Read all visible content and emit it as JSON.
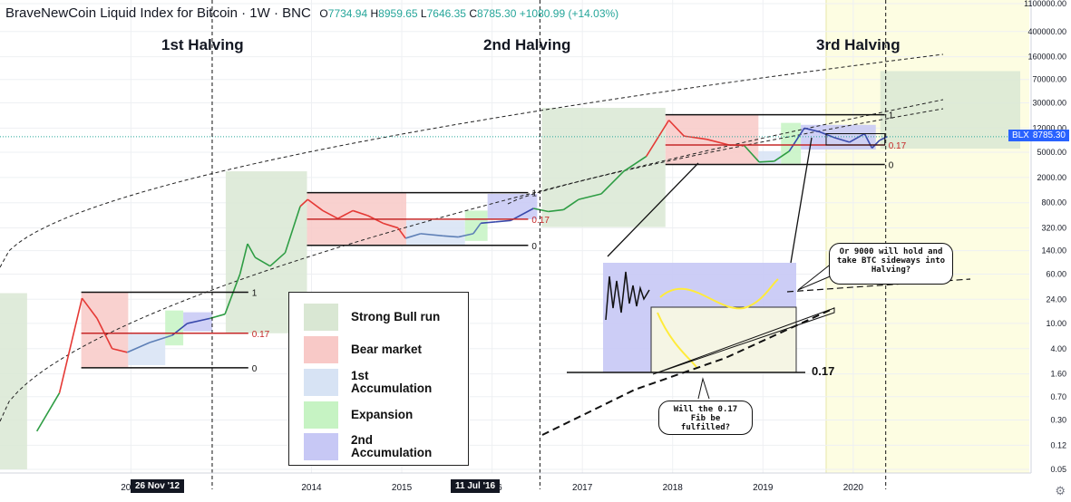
{
  "header": {
    "title": "BraveNewCoin Liquid Index for Bitcoin · 1W · BNC",
    "ohlc": {
      "open_label": "O",
      "open": "7734.94",
      "high_label": "H",
      "high": "8959.65",
      "low_label": "L",
      "low": "7646.35",
      "close_label": "C",
      "close": "8785.30",
      "change": "+1080.99 (+14.03%)"
    }
  },
  "halvings": [
    "1st Halving",
    "2nd Halving",
    "3rd Halving"
  ],
  "date_tags": [
    "26 Nov '12",
    "11 Jul '16"
  ],
  "price_tag": {
    "symbol": "BLX",
    "value": "8785.30",
    "color": "#2962ff"
  },
  "legend": [
    {
      "label": "Strong Bull run",
      "color": "#d9e7d3"
    },
    {
      "label": "Bear market",
      "color": "#f8c9c7"
    },
    {
      "label": "1st Accumulation",
      "color": "#d7e3f4"
    },
    {
      "label": "Expansion",
      "color": "#c6f3c3"
    },
    {
      "label": "2nd Accumulation",
      "color": "#c7c8f5"
    }
  ],
  "callouts": {
    "top": "Or 9000 will hold and take BTC sideways into Halving?",
    "bottom": "Will the 0.17 Fib be fulfilled?"
  },
  "fib_labels": {
    "one": "1",
    "fib017": "0.17",
    "zero": "0",
    "inset_017": "0.17"
  },
  "chart_data": {
    "type": "line",
    "title": "BraveNewCoin Liquid Index for Bitcoin",
    "y_scale": "log",
    "y_ticks": [
      "0.05",
      "0.12",
      "0.30",
      "0.70",
      "1.60",
      "4.00",
      "10.00",
      "24.00",
      "60.00",
      "140.00",
      "320.00",
      "800.00",
      "2000.00",
      "5000.00",
      "12000.00",
      "30000.00",
      "70000.00",
      "160000.00",
      "400000.00",
      "1100000.00"
    ],
    "x_ticks": [
      "2012",
      "2014",
      "2015",
      "2016",
      "2017",
      "2018",
      "2019",
      "2020"
    ],
    "series": [
      {
        "values": [
          [
            "2010-12",
            0.2
          ],
          [
            "2011-03",
            0.8
          ],
          [
            "2011-06",
            25
          ],
          [
            "2011-08",
            12
          ],
          [
            "2011-10",
            4
          ],
          [
            "2011-12",
            3.5
          ],
          [
            "2012-03",
            5
          ],
          [
            "2012-06",
            6.5
          ],
          [
            "2012-08",
            10
          ],
          [
            "2012-11",
            12
          ],
          [
            "2013-01",
            14
          ],
          [
            "2013-03",
            60
          ],
          [
            "2013-04",
            180
          ],
          [
            "2013-05",
            110
          ],
          [
            "2013-07",
            80
          ],
          [
            "2013-09",
            130
          ],
          [
            "2013-11",
            700
          ],
          [
            "2013-12",
            900
          ],
          [
            "2014-02",
            600
          ],
          [
            "2014-04",
            450
          ],
          [
            "2014-06",
            600
          ],
          [
            "2014-08",
            500
          ],
          [
            "2014-10",
            380
          ],
          [
            "2014-12",
            320
          ],
          [
            "2015-01",
            220
          ],
          [
            "2015-03",
            260
          ],
          [
            "2015-06",
            240
          ],
          [
            "2015-08",
            230
          ],
          [
            "2015-10",
            260
          ],
          [
            "2015-11",
            380
          ],
          [
            "2016-01",
            400
          ],
          [
            "2016-03",
            420
          ],
          [
            "2016-06",
            650
          ],
          [
            "2016-08",
            580
          ],
          [
            "2016-10",
            620
          ],
          [
            "2016-12",
            900
          ],
          [
            "2017-03",
            1100
          ],
          [
            "2017-06",
            2500
          ],
          [
            "2017-09",
            4300
          ],
          [
            "2017-12",
            16000
          ],
          [
            "2018-02",
            9000
          ],
          [
            "2018-05",
            8000
          ],
          [
            "2018-08",
            6500
          ],
          [
            "2018-10",
            6400
          ],
          [
            "2018-12",
            3500
          ],
          [
            "2019-02",
            3600
          ],
          [
            "2019-04",
            5200
          ],
          [
            "2019-06",
            12000
          ],
          [
            "2019-08",
            10500
          ],
          [
            "2019-10",
            8500
          ],
          [
            "2019-12",
            7200
          ],
          [
            "2020-02",
            9800
          ],
          [
            "2020-03",
            5800
          ],
          [
            "2020-04",
            7700
          ],
          [
            "2020-05",
            8785
          ]
        ]
      }
    ],
    "fib_levels": [
      {
        "cycle": "2011-2013",
        "level_1": 31,
        "level_017": 7,
        "level_0": 2
      },
      {
        "cycle": "2013-2016",
        "level_1": 1150,
        "level_017": 440,
        "level_0": 170
      },
      {
        "cycle": "2017-2020",
        "level_1": 19500,
        "level_017": 6500,
        "level_0": 3200
      }
    ],
    "annotations": [
      "1st Halving",
      "2nd Halving",
      "3rd Halving",
      "Or 9000 will hold and take BTC sideways into Halving?",
      "Will the 0.17 Fib be fulfilled?"
    ],
    "grid": true
  }
}
